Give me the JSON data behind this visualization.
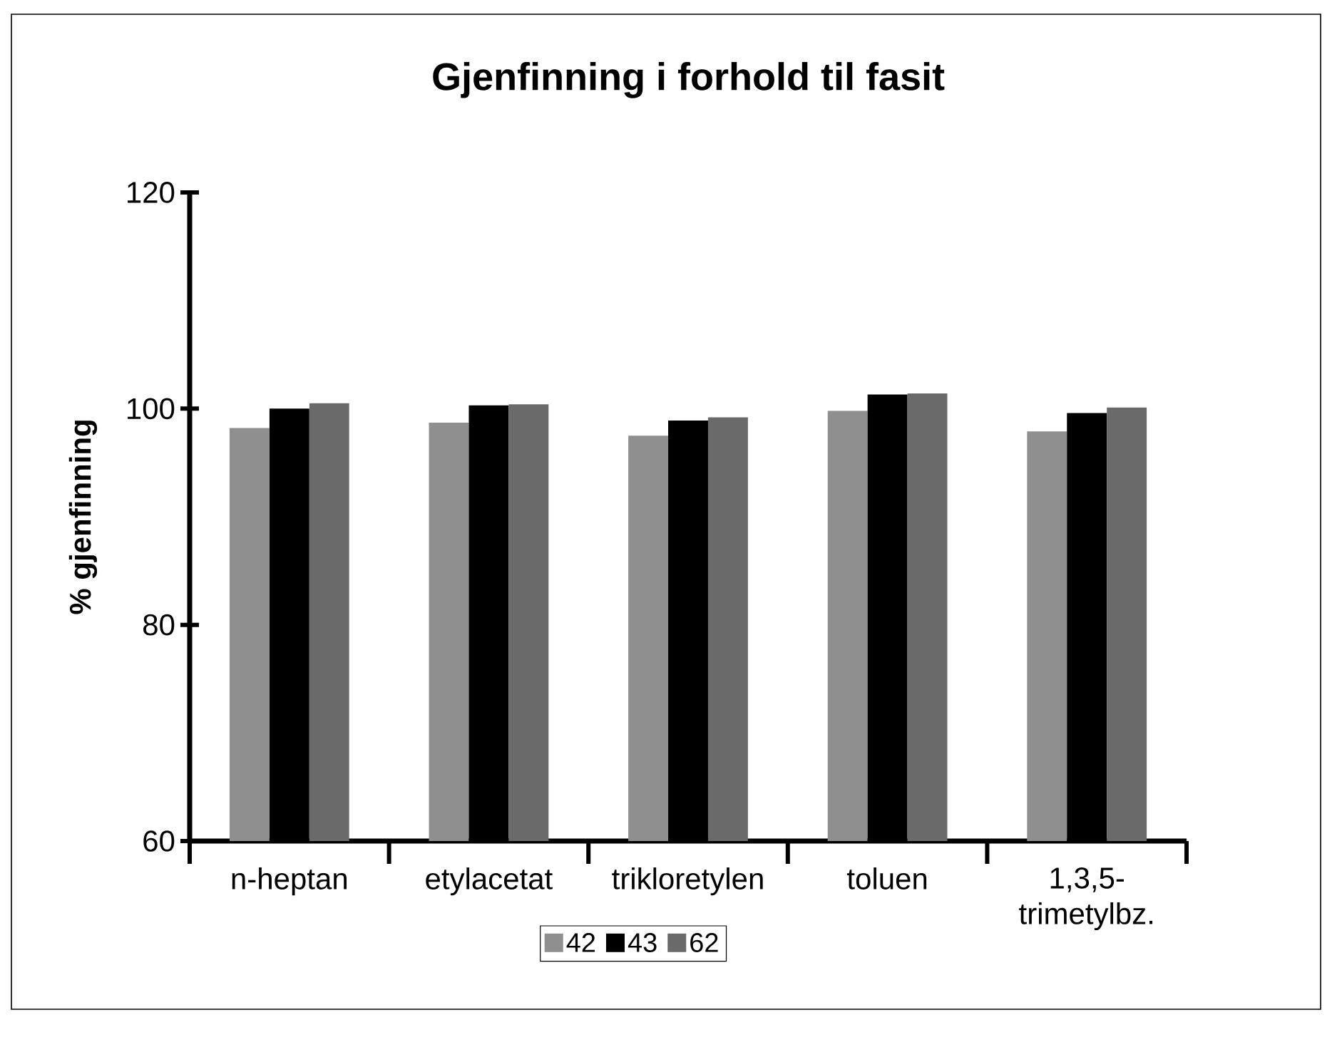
{
  "chart_data": {
    "type": "bar",
    "title": "Gjenfinning i forhold til fasit",
    "ylabel": "% gjenfinning",
    "categories": [
      "n-heptan",
      "etylacetat",
      "trikloretylen",
      "toluen",
      "1,3,5-trimetylbz."
    ],
    "series": [
      {
        "name": "42",
        "color": "#8f8f8f",
        "values": [
          98.2,
          98.7,
          97.5,
          99.8,
          97.9
        ]
      },
      {
        "name": "43",
        "color": "#000000",
        "values": [
          100.0,
          100.3,
          98.9,
          101.3,
          99.6
        ]
      },
      {
        "name": "62",
        "color": "#6a6a6a",
        "values": [
          100.5,
          100.4,
          99.2,
          101.4,
          100.1
        ]
      }
    ],
    "ylim": [
      60,
      120
    ],
    "yticks": [
      60,
      80,
      100,
      120
    ],
    "legend": "bottom"
  }
}
